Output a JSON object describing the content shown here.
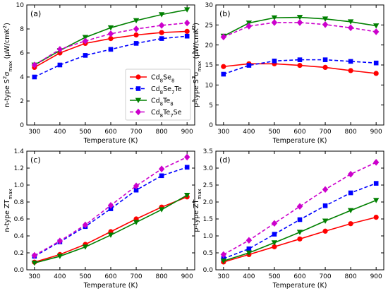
{
  "chart_data": [
    {
      "type": "line",
      "panel_label": "(a)",
      "xlabel": "Temperature (K)",
      "ylabel": "n-type S",
      "ylabel_sup": "2",
      "ylabel_rest": "σ",
      "ylabel_sub": "max",
      "ylabel_unit": " (μW/cmK",
      "ylabel_unit_sup": "2",
      "ylabel_unit_end": ")",
      "x": [
        300,
        400,
        500,
        600,
        700,
        800,
        900
      ],
      "xticks": [
        "300",
        "400",
        "500",
        "600",
        "700",
        "800",
        "900"
      ],
      "yticks": [
        "0",
        "2",
        "4",
        "6",
        "8",
        "10"
      ],
      "xlim": [
        270,
        930
      ],
      "ylim": [
        0,
        10
      ],
      "grid": false,
      "legend": true,
      "legend_position": "lower-right",
      "series": [
        {
          "name": "Cd8Se8",
          "values": [
            4.8,
            6.0,
            6.8,
            7.2,
            7.5,
            7.7,
            7.8
          ]
        },
        {
          "name": "Cd8Se7Te",
          "values": [
            4.0,
            5.0,
            5.8,
            6.3,
            6.8,
            7.2,
            7.4
          ]
        },
        {
          "name": "Cd8Te8",
          "values": [
            5.0,
            6.2,
            7.3,
            8.1,
            8.7,
            9.2,
            9.6
          ]
        },
        {
          "name": "Cd8Te7Se",
          "values": [
            5.0,
            6.3,
            7.0,
            7.6,
            8.0,
            8.3,
            8.5
          ]
        }
      ]
    },
    {
      "type": "line",
      "panel_label": "(b)",
      "xlabel": "Temperature (K)",
      "ylabel": "p-type S",
      "ylabel_sup": "2",
      "ylabel_rest": "σ",
      "ylabel_sub": "max",
      "ylabel_unit": " (μW/cmK",
      "ylabel_unit_sup": "2",
      "ylabel_unit_end": ")",
      "x": [
        300,
        400,
        500,
        600,
        700,
        800,
        900
      ],
      "xticks": [
        "300",
        "400",
        "500",
        "600",
        "700",
        "800",
        "900"
      ],
      "yticks": [
        "0",
        "5",
        "10",
        "15",
        "20",
        "25",
        "30"
      ],
      "xlim": [
        270,
        930
      ],
      "ylim": [
        0,
        30
      ],
      "grid": false,
      "legend": false,
      "series": [
        {
          "name": "Cd8Se8",
          "values": [
            14.6,
            15.3,
            15.3,
            14.9,
            14.4,
            13.6,
            12.9
          ]
        },
        {
          "name": "Cd8Se7Te",
          "values": [
            12.7,
            14.9,
            16.0,
            16.3,
            16.3,
            15.9,
            15.5
          ]
        },
        {
          "name": "Cd8Te8",
          "values": [
            22.2,
            25.5,
            26.8,
            26.9,
            26.5,
            25.8,
            24.8
          ]
        },
        {
          "name": "Cd8Te7Se",
          "values": [
            22.0,
            24.7,
            25.6,
            25.6,
            25.1,
            24.3,
            23.3
          ]
        }
      ]
    },
    {
      "type": "line",
      "panel_label": "(c)",
      "xlabel": "Temperature (K)",
      "ylabel": "n-type ZT",
      "ylabel_sub": "max",
      "x": [
        300,
        400,
        500,
        600,
        700,
        800,
        900
      ],
      "xticks": [
        "300",
        "400",
        "500",
        "600",
        "700",
        "800",
        "900"
      ],
      "yticks": [
        "0.0",
        "0.2",
        "0.4",
        "0.6",
        "0.8",
        "1.0",
        "1.2",
        "1.4"
      ],
      "xlim": [
        270,
        930
      ],
      "ylim": [
        0,
        1.4
      ],
      "grid": false,
      "legend": false,
      "series": [
        {
          "name": "Cd8Se8",
          "values": [
            0.09,
            0.18,
            0.3,
            0.45,
            0.6,
            0.74,
            0.86
          ]
        },
        {
          "name": "Cd8Se7Te",
          "values": [
            0.16,
            0.33,
            0.51,
            0.72,
            0.94,
            1.11,
            1.21
          ]
        },
        {
          "name": "Cd8Te8",
          "values": [
            0.08,
            0.16,
            0.27,
            0.41,
            0.56,
            0.71,
            0.88
          ]
        },
        {
          "name": "Cd8Te7Se",
          "values": [
            0.17,
            0.34,
            0.53,
            0.76,
            0.99,
            1.19,
            1.33
          ]
        }
      ]
    },
    {
      "type": "line",
      "panel_label": "(d)",
      "xlabel": "Temperature (K)",
      "ylabel": "p-type ZT",
      "ylabel_sub": "max",
      "x": [
        300,
        400,
        500,
        600,
        700,
        800,
        900
      ],
      "xticks": [
        "300",
        "400",
        "500",
        "600",
        "700",
        "800",
        "900"
      ],
      "yticks": [
        "0.0",
        "0.5",
        "1.0",
        "1.5",
        "2.0",
        "2.5",
        "3.0",
        "3.5"
      ],
      "xlim": [
        270,
        930
      ],
      "ylim": [
        0,
        3.5
      ],
      "grid": false,
      "legend": false,
      "series": [
        {
          "name": "Cd8Se8",
          "values": [
            0.23,
            0.45,
            0.68,
            0.91,
            1.14,
            1.36,
            1.55
          ]
        },
        {
          "name": "Cd8Se7Te",
          "values": [
            0.33,
            0.62,
            1.05,
            1.48,
            1.89,
            2.27,
            2.55
          ]
        },
        {
          "name": "Cd8Te8",
          "values": [
            0.26,
            0.5,
            0.8,
            1.11,
            1.44,
            1.75,
            2.05
          ]
        },
        {
          "name": "Cd8Te7Se",
          "values": [
            0.45,
            0.87,
            1.37,
            1.87,
            2.37,
            2.82,
            3.17
          ]
        }
      ]
    }
  ],
  "legend_entries": [
    {
      "base": "Cd",
      "sub1": "8",
      "mid": "Se",
      "sub2": "8",
      "tail": "",
      "sub3": ""
    },
    {
      "base": "Cd",
      "sub1": "8",
      "mid": "Se",
      "sub2": "7",
      "tail": "Te",
      "sub3": ""
    },
    {
      "base": "Cd",
      "sub1": "8",
      "mid": "Te",
      "sub2": "8",
      "tail": "",
      "sub3": ""
    },
    {
      "base": "Cd",
      "sub1": "8",
      "mid": "Te",
      "sub2": "7",
      "tail": "Se",
      "sub3": ""
    }
  ],
  "series_styles": [
    {
      "color": "#ff0000",
      "marker": "circle",
      "dash": "solid"
    },
    {
      "color": "#0000ff",
      "marker": "square",
      "dash": "dashed"
    },
    {
      "color": "#008000",
      "marker": "triangle-down",
      "dash": "solid"
    },
    {
      "color": "#cc00cc",
      "marker": "diamond",
      "dash": "dashed"
    }
  ]
}
